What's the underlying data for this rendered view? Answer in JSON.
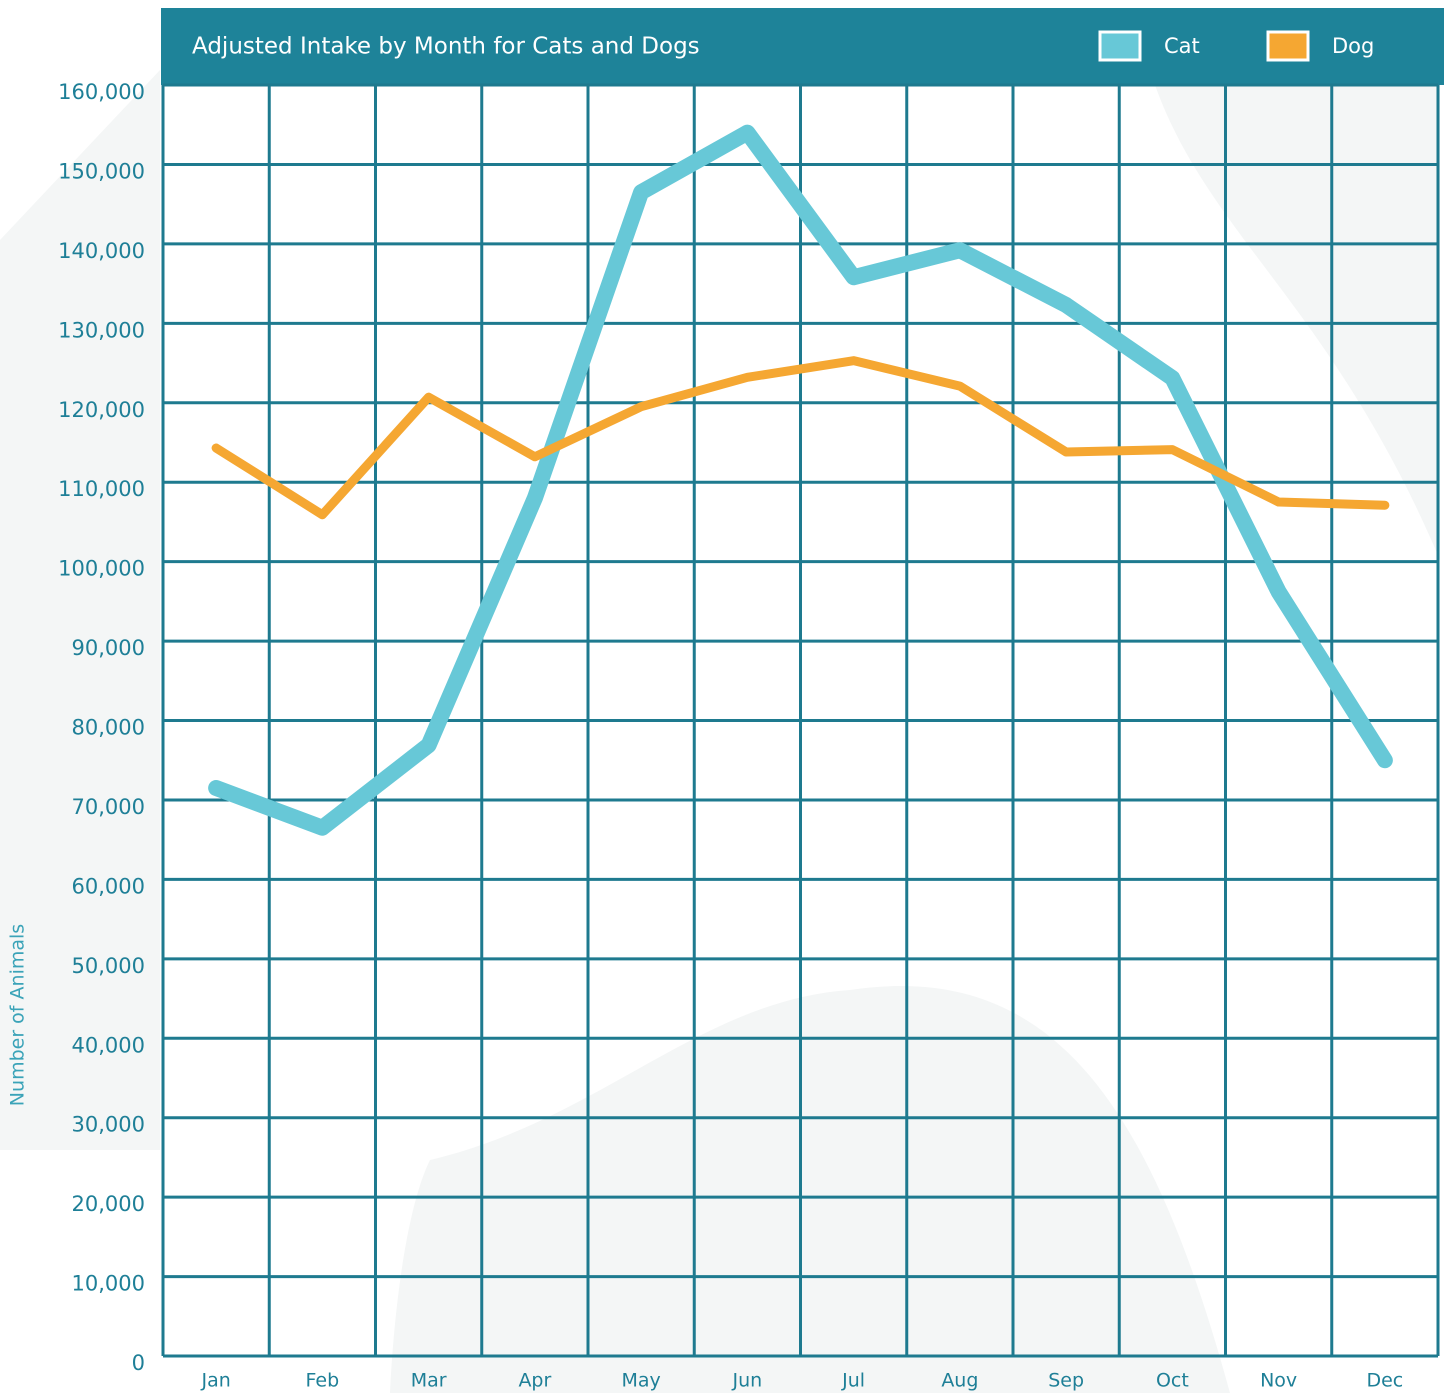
{
  "chart_data": {
    "type": "line",
    "title": "Adjusted Intake by Month for Cats and Dogs",
    "y_label": "Number of Animals",
    "categories": [
      "Jan",
      "Feb",
      "Mar",
      "Apr",
      "May",
      "Jun",
      "Jul",
      "Aug",
      "Sep",
      "Oct",
      "Nov",
      "Dec"
    ],
    "series": [
      {
        "name": "Cat",
        "color": "#67c8d7",
        "values": [
          71500,
          66500,
          76900,
          108000,
          146500,
          154000,
          135800,
          139200,
          132300,
          123100,
          96200,
          75000
        ]
      },
      {
        "name": "Dog",
        "color": "#f5a732",
        "values": [
          114300,
          105900,
          120700,
          113200,
          119500,
          123200,
          125300,
          122100,
          113800,
          114100,
          107500,
          107100
        ]
      }
    ],
    "ylim": [
      0,
      160000
    ],
    "yticks": [
      0,
      {
        "value": 10000,
        "label": "10,000"
      },
      {
        "value": 20000,
        "label": "20,000"
      },
      {
        "value": 30000,
        "label": "30,000"
      },
      {
        "value": 40000,
        "label": "40,000"
      },
      {
        "value": 50000,
        "label": "50,000"
      },
      {
        "value": 60000,
        "label": "60,000"
      },
      {
        "value": 70000,
        "label": "70,000"
      },
      {
        "value": 80000,
        "label": "80,000"
      },
      {
        "value": 90000,
        "label": "90,000"
      },
      {
        "value": 100000,
        "label": "100,000"
      },
      {
        "value": 110000,
        "label": "110,000"
      },
      {
        "value": 120000,
        "label": "120,000"
      },
      {
        "value": 130000,
        "label": "130,000"
      },
      {
        "value": 140000,
        "label": "140,000"
      },
      {
        "value": 150000,
        "label": "150,000"
      },
      {
        "value": 160000,
        "label": "160,000"
      }
    ],
    "grid": true,
    "legend": "top-right"
  }
}
